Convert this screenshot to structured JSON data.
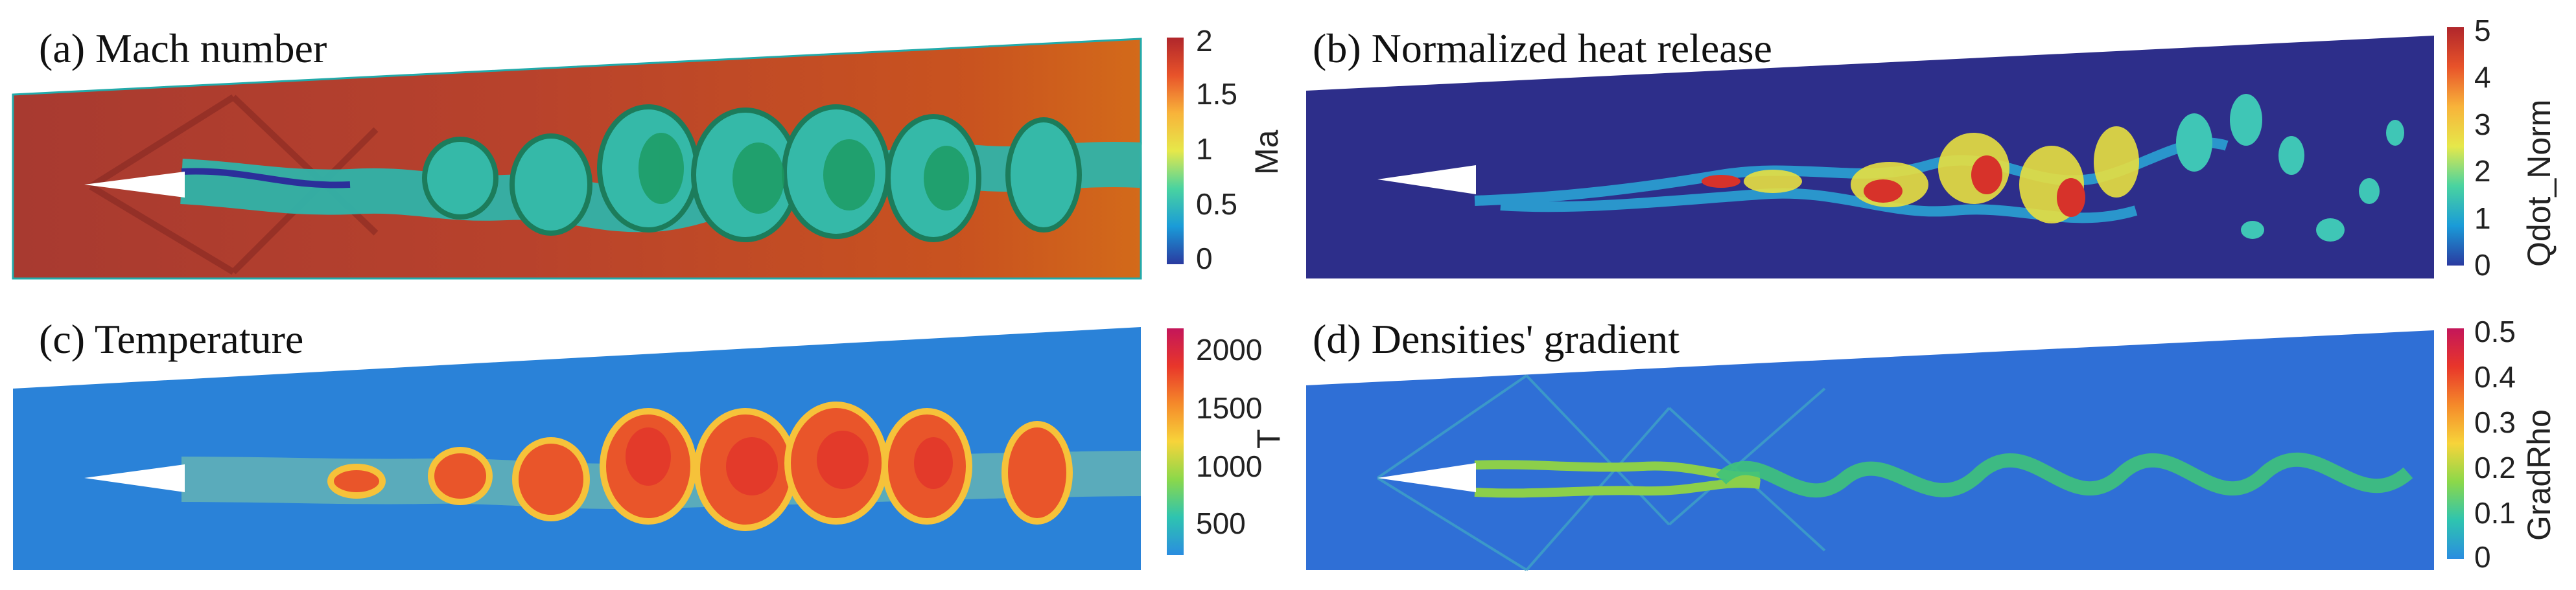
{
  "panels": {
    "a": {
      "title": "(a) Mach number",
      "colorbar": {
        "label": "Ma",
        "ticks": [
          "2",
          "1.5",
          "1",
          "0.5",
          "0"
        ],
        "colors": [
          "#b0262b",
          "#e8532a",
          "#f8b33a",
          "#e6e84a",
          "#49d3a0",
          "#1a9bd8",
          "#2a3aa0"
        ]
      }
    },
    "b": {
      "title": "(b) Normalized heat release",
      "colorbar": {
        "label": "Qdot_Norm",
        "ticks": [
          "5",
          "4",
          "3",
          "2",
          "1",
          "0"
        ],
        "colors": [
          "#b0262b",
          "#e8532a",
          "#f8b33a",
          "#e6e84a",
          "#49d3a0",
          "#1a9bd8",
          "#2a3aa0"
        ]
      }
    },
    "c": {
      "title": "(c) Temperature",
      "colorbar": {
        "label": "T",
        "ticks": [
          "2000",
          "1500",
          "1000",
          "500"
        ],
        "colors": [
          "#c4165a",
          "#e8362a",
          "#f58a2a",
          "#f7d43a",
          "#8bd84a",
          "#2ec4b0",
          "#2a8de0"
        ]
      }
    },
    "d": {
      "title": "(d) Densities' gradient",
      "colorbar": {
        "label": "GradRho",
        "ticks": [
          "0.5",
          "0.4",
          "0.3",
          "0.2",
          "0.1",
          "0"
        ],
        "colors": [
          "#c4165a",
          "#e8362a",
          "#f58a2a",
          "#f7d43a",
          "#8bd84a",
          "#2ec4b0",
          "#2a8de0"
        ]
      }
    }
  }
}
